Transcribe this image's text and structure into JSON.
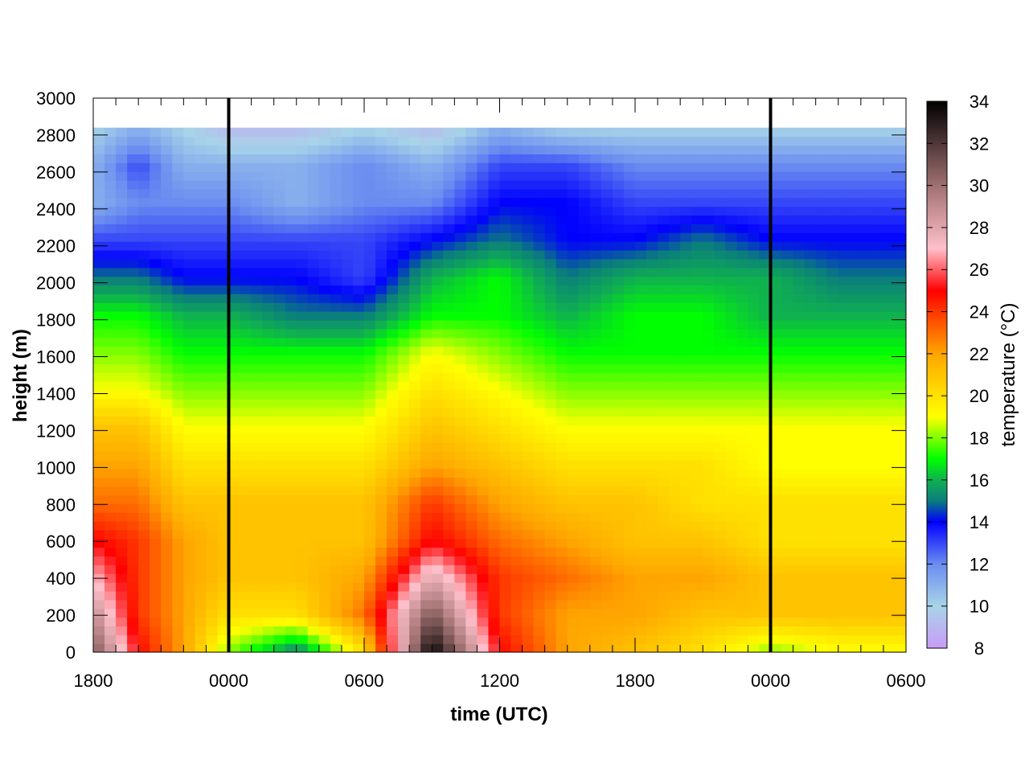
{
  "chart_data": {
    "type": "heatmap",
    "title": "",
    "xlabel": "time (UTC)",
    "ylabel": "height (m)",
    "x_tick_labels": [
      "1800",
      "0000",
      "0600",
      "1200",
      "1800",
      "0000",
      "0600"
    ],
    "xlim_hours": [
      0,
      36
    ],
    "y_ticks": [
      0,
      200,
      400,
      600,
      800,
      1000,
      1200,
      1400,
      1600,
      1800,
      2000,
      2200,
      2400,
      2600,
      2800,
      3000
    ],
    "ylim": [
      0,
      3000
    ],
    "data_top_height": 2840,
    "vertical_markers_hours": [
      6,
      30
    ],
    "colorbar": {
      "label": "temperature (°C)",
      "ticks": [
        8,
        10,
        12,
        14,
        16,
        18,
        20,
        22,
        24,
        26,
        28,
        30,
        32,
        34
      ],
      "range": [
        8,
        34
      ]
    },
    "temperature_profiles": [
      {
        "hour": 0,
        "values": [
          31,
          29,
          27,
          25,
          23,
          22,
          21,
          19,
          18,
          17,
          15,
          13,
          11,
          11,
          10
        ]
      },
      {
        "hour": 2,
        "values": [
          25,
          24,
          24,
          24,
          23,
          22,
          21,
          19,
          18,
          17,
          15,
          13,
          12,
          13,
          11
        ]
      },
      {
        "hour": 4,
        "values": [
          22,
          22,
          22,
          22,
          21,
          20,
          19,
          18,
          17,
          16,
          14,
          13,
          12,
          11,
          10
        ]
      },
      {
        "hour": 6,
        "values": [
          18,
          20,
          21,
          21,
          21,
          20,
          19,
          18,
          17,
          16,
          14,
          13,
          12,
          11,
          9
        ]
      },
      {
        "hour": 9,
        "values": [
          15,
          20,
          21,
          21,
          21,
          20,
          19,
          18,
          17,
          15,
          14,
          13,
          11,
          11,
          9
        ]
      },
      {
        "hour": 12,
        "values": [
          20,
          23,
          22,
          21,
          21,
          20,
          19,
          18,
          17,
          15,
          13,
          13,
          12,
          12,
          10
        ]
      },
      {
        "hour": 15,
        "values": [
          34,
          31,
          28,
          25,
          24,
          22,
          21,
          20,
          19,
          17,
          16,
          14,
          12,
          11,
          9
        ]
      },
      {
        "hour": 18,
        "values": [
          25,
          24,
          24,
          23,
          22,
          21,
          20,
          19,
          18,
          17,
          17,
          15,
          14,
          13,
          11
        ]
      },
      {
        "hour": 21,
        "values": [
          22,
          22,
          23,
          22,
          21,
          20,
          19,
          18,
          17,
          16,
          15,
          14,
          14,
          13,
          10
        ]
      },
      {
        "hour": 24,
        "values": [
          21,
          22,
          22,
          21,
          21,
          20,
          19,
          18,
          17,
          17,
          16,
          14,
          13,
          12,
          10
        ]
      },
      {
        "hour": 27,
        "values": [
          20,
          21,
          22,
          21,
          20,
          20,
          19,
          18,
          17,
          17,
          16,
          15,
          13,
          12,
          10
        ]
      },
      {
        "hour": 30,
        "values": [
          18,
          21,
          21,
          20,
          20,
          19,
          19,
          18,
          17,
          16,
          16,
          14,
          13,
          12,
          10
        ]
      },
      {
        "hour": 33,
        "values": [
          19,
          21,
          21,
          20,
          20,
          19,
          19,
          18,
          17,
          16,
          15,
          14,
          13,
          12,
          10
        ]
      },
      {
        "hour": 36,
        "values": [
          19,
          21,
          21,
          20,
          20,
          19,
          19,
          18,
          17,
          16,
          15,
          14,
          13,
          12,
          10
        ]
      }
    ],
    "palette": [
      {
        "t": 8,
        "color": "#c89cf6"
      },
      {
        "t": 10,
        "color": "#a8d4e8"
      },
      {
        "t": 12,
        "color": "#6a8cf0"
      },
      {
        "t": 14,
        "color": "#0000ff"
      },
      {
        "t": 15,
        "color": "#0b7d7d"
      },
      {
        "t": 16,
        "color": "#10b050"
      },
      {
        "t": 17,
        "color": "#00ff00"
      },
      {
        "t": 19,
        "color": "#ffff00"
      },
      {
        "t": 22,
        "color": "#ffa500"
      },
      {
        "t": 25,
        "color": "#ff0000"
      },
      {
        "t": 27,
        "color": "#ffc0cb"
      },
      {
        "t": 30,
        "color": "#a07070"
      },
      {
        "t": 34,
        "color": "#000000"
      }
    ]
  }
}
